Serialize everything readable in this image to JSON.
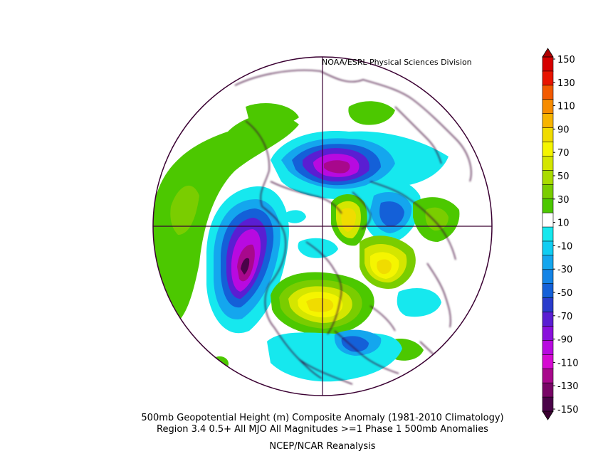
{
  "credit": "NOAA/ESRL Physical Sciences Division",
  "captions": {
    "line1": "500mb Geopotential Height (m) Composite Anomaly (1981-2010 Climatology)",
    "line2": "Region 3.4 0.5+ All MJO All Magnitudes >=1   Phase 1 500mb Anomalies",
    "line3": "NCEP/NCAR Reanalysis"
  },
  "colorbar": {
    "labels": [
      "150",
      "130",
      "110",
      "90",
      "70",
      "50",
      "30",
      "10",
      "-10",
      "-30",
      "-50",
      "-70",
      "-90",
      "-110",
      "-130",
      "-150"
    ],
    "colors": [
      "#d60000",
      "#e81400",
      "#f25a00",
      "#f78c00",
      "#f7b400",
      "#f0dc00",
      "#f5f500",
      "#d4e600",
      "#aadc00",
      "#7acd00",
      "#4cc800",
      "#ffffff",
      "#16e8ee",
      "#10cdf2",
      "#14a6ee",
      "#1484e6",
      "#1460d8",
      "#2a3ccc",
      "#5a1ed2",
      "#8a10dc",
      "#b80ae0",
      "#d60ad2",
      "#a8088c",
      "#780566",
      "#4a0348"
    ]
  }
}
